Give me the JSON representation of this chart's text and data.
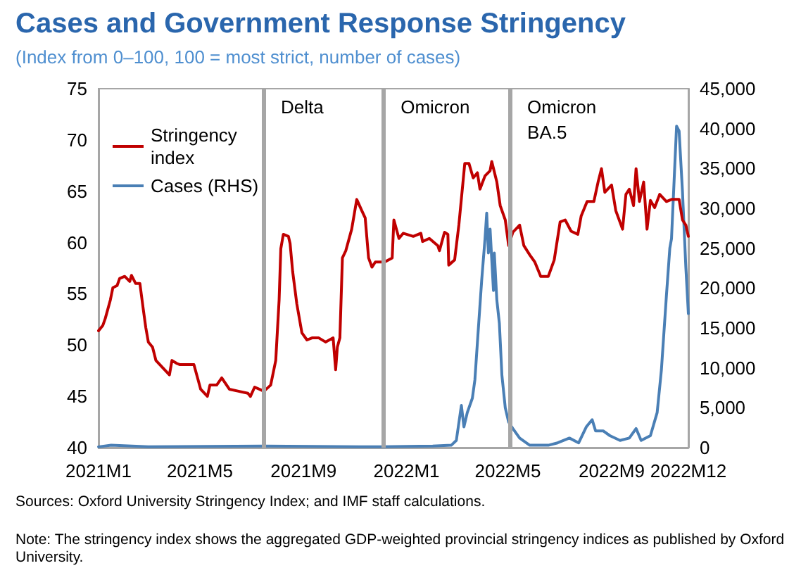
{
  "chart_data": {
    "type": "line",
    "title": "Cases and Government Response Stringency",
    "subtitle": "(Index from 0–100, 100 = most strict, number of cases)",
    "annotations": [
      "Sources: Oxford University Stringency Index; and IMF staff calculations.",
      "Note: The stringency index shows the aggregated GDP-weighted provincial stringency indices as published by Oxford University."
    ],
    "xlim": [
      "2021-01-01",
      "2022-12-01"
    ],
    "xticks": [
      {
        "value": "2021-01-01",
        "label": "2021M1"
      },
      {
        "value": "2021-05-01",
        "label": "2021M5"
      },
      {
        "value": "2021-09-01",
        "label": "2021M9"
      },
      {
        "value": "2022-01-01",
        "label": "2022M1"
      },
      {
        "value": "2022-05-01",
        "label": "2022M5"
      },
      {
        "value": "2022-09-01",
        "label": "2022M9"
      },
      {
        "value": "2022-12-01",
        "label": "2022M12"
      }
    ],
    "ylim": [
      40,
      75
    ],
    "yticks": [
      40,
      45,
      50,
      55,
      60,
      65,
      70,
      75
    ],
    "y2lim": [
      0,
      45000
    ],
    "y2ticks": [
      {
        "value": 0,
        "label": "0"
      },
      {
        "value": 5000,
        "label": "5,000"
      },
      {
        "value": 10000,
        "label": "10,000"
      },
      {
        "value": 15000,
        "label": "15,000"
      },
      {
        "value": 20000,
        "label": "20,000"
      },
      {
        "value": 25000,
        "label": "25,000"
      },
      {
        "value": 30000,
        "label": "30,000"
      },
      {
        "value": 35000,
        "label": "35,000"
      },
      {
        "value": 40000,
        "label": "40,000"
      },
      {
        "value": 45000,
        "label": "45,000"
      }
    ],
    "grid": false,
    "legend": "top left",
    "marker": "none",
    "line_style": "solid",
    "ref_lines": [
      {
        "axis": "x",
        "value": "2021-07-16",
        "label": "Delta",
        "color": "#a6a6a6"
      },
      {
        "axis": "x",
        "value": "2021-12-05",
        "label": "Omicron",
        "color": "#a6a6a6"
      },
      {
        "axis": "x",
        "value": "2022-05-04",
        "label": "Omicron BA.5",
        "color": "#a6a6a6"
      }
    ],
    "series": [
      {
        "name": "Stringency index",
        "color": "#c00000",
        "x": [
          "2021-01-01",
          "2021-01-06",
          "2021-01-09",
          "2021-01-15",
          "2021-01-18",
          "2021-01-23",
          "2021-01-26",
          "2021-02-01",
          "2021-02-07",
          "2021-02-09",
          "2021-02-14",
          "2021-02-19",
          "2021-02-23",
          "2021-02-26",
          "2021-03-01",
          "2021-03-06",
          "2021-03-10",
          "2021-03-18",
          "2021-03-26",
          "2021-03-29",
          "2021-04-04",
          "2021-04-07",
          "2021-04-24",
          "2021-04-29",
          "2021-05-02",
          "2021-05-10",
          "2021-05-13",
          "2021-05-21",
          "2021-05-27",
          "2021-06-05",
          "2021-06-16",
          "2021-06-27",
          "2021-06-30",
          "2021-07-05",
          "2021-07-16",
          "2021-07-24",
          "2021-07-30",
          "2021-08-03",
          "2021-08-05",
          "2021-08-08",
          "2021-08-14",
          "2021-08-16",
          "2021-08-19",
          "2021-08-24",
          "2021-08-30",
          "2021-09-05",
          "2021-09-11",
          "2021-09-19",
          "2021-09-27",
          "2021-10-06",
          "2021-10-09",
          "2021-10-11",
          "2021-10-14",
          "2021-10-17",
          "2021-10-21",
          "2021-10-28",
          "2021-11-03",
          "2021-11-09",
          "2021-11-13",
          "2021-11-17",
          "2021-11-21",
          "2021-11-25",
          "2021-11-30",
          "2021-12-06",
          "2021-12-15",
          "2021-12-17",
          "2021-12-23",
          "2021-12-28",
          "2022-01-09",
          "2022-01-18",
          "2022-01-20",
          "2022-01-28",
          "2022-02-07",
          "2022-02-09",
          "2022-02-15",
          "2022-02-19",
          "2022-02-20",
          "2022-02-27",
          "2022-03-04",
          "2022-03-11",
          "2022-03-16",
          "2022-03-21",
          "2022-03-26",
          "2022-03-29",
          "2022-04-04",
          "2022-04-10",
          "2022-04-12",
          "2022-04-18",
          "2022-04-22",
          "2022-04-28",
          "2022-05-02",
          "2022-05-07",
          "2022-05-15",
          "2022-05-20",
          "2022-05-27",
          "2022-06-02",
          "2022-06-09",
          "2022-06-18",
          "2022-06-25",
          "2022-07-02",
          "2022-07-08",
          "2022-07-15",
          "2022-07-23",
          "2022-07-27",
          "2022-08-03",
          "2022-08-11",
          "2022-08-16",
          "2022-08-20",
          "2022-08-24",
          "2022-09-01",
          "2022-09-06",
          "2022-09-14",
          "2022-09-18",
          "2022-09-22",
          "2022-09-27",
          "2022-09-30",
          "2022-10-04",
          "2022-10-09",
          "2022-10-13",
          "2022-10-17",
          "2022-10-22",
          "2022-10-28",
          "2022-11-05",
          "2022-11-11",
          "2022-11-20",
          "2022-11-24",
          "2022-11-28",
          "2022-12-01"
        ],
        "values": [
          51.4,
          51.9,
          52.6,
          54.4,
          55.6,
          55.8,
          56.5,
          56.7,
          56.2,
          56.8,
          56.0,
          56.0,
          53.5,
          51.7,
          50.3,
          49.8,
          48.5,
          47.8,
          47.1,
          48.5,
          48.2,
          48.1,
          48.1,
          46.6,
          45.7,
          45.0,
          46.1,
          46.1,
          46.8,
          45.7,
          45.5,
          45.3,
          45.0,
          45.9,
          45.5,
          46.1,
          48.5,
          54.4,
          59.4,
          60.8,
          60.6,
          59.9,
          57.2,
          54.0,
          51.2,
          50.5,
          50.7,
          50.7,
          50.3,
          50.7,
          47.6,
          49.8,
          50.7,
          58.5,
          59.2,
          61.3,
          64.2,
          63.1,
          62.4,
          58.5,
          57.6,
          58.1,
          58.1,
          58.1,
          58.5,
          62.2,
          60.4,
          60.9,
          60.6,
          60.9,
          60.1,
          60.4,
          59.7,
          59.2,
          61.0,
          60.8,
          57.8,
          58.3,
          61.7,
          67.7,
          67.7,
          66.3,
          66.8,
          65.2,
          66.5,
          67.0,
          67.9,
          65.9,
          63.6,
          62.2,
          59.7,
          61.0,
          61.7,
          59.7,
          58.8,
          58.1,
          56.7,
          56.7,
          58.3,
          62.0,
          62.2,
          61.1,
          60.8,
          62.6,
          64.0,
          64.0,
          65.9,
          67.2,
          64.9,
          65.6,
          63.1,
          61.3,
          64.7,
          65.2,
          63.6,
          67.2,
          64.0,
          65.9,
          61.3,
          64.1,
          63.4,
          64.7,
          64.0,
          64.2,
          64.2,
          62.2,
          61.7,
          60.6
        ]
      },
      {
        "name": "Cases (RHS)",
        "color": "#4a7fb5",
        "axis": "y2",
        "x": [
          "2021-01-01",
          "2021-01-16",
          "2021-03-01",
          "2021-07-16",
          "2021-12-01",
          "2022-02-01",
          "2022-02-23",
          "2022-03-01",
          "2022-03-07",
          "2022-03-10",
          "2022-03-14",
          "2022-03-20",
          "2022-03-23",
          "2022-03-26",
          "2022-03-31",
          "2022-04-04",
          "2022-04-06",
          "2022-04-08",
          "2022-04-10",
          "2022-04-14",
          "2022-04-15",
          "2022-04-18",
          "2022-04-21",
          "2022-04-24",
          "2022-04-28",
          "2022-05-02",
          "2022-05-07",
          "2022-05-15",
          "2022-05-27",
          "2022-06-18",
          "2022-06-29",
          "2022-07-13",
          "2022-07-24",
          "2022-08-02",
          "2022-08-09",
          "2022-08-13",
          "2022-08-22",
          "2022-08-30",
          "2022-09-11",
          "2022-09-22",
          "2022-09-30",
          "2022-10-06",
          "2022-10-17",
          "2022-10-25",
          "2022-10-30",
          "2022-11-05",
          "2022-11-09",
          "2022-11-11",
          "2022-11-17",
          "2022-11-20",
          "2022-11-24",
          "2022-11-28",
          "2022-12-01"
        ],
        "values": [
          100,
          300,
          100,
          200,
          100,
          200,
          300,
          900,
          5300,
          2600,
          4400,
          6200,
          8500,
          13200,
          20900,
          26200,
          29400,
          24400,
          27400,
          19700,
          24400,
          18500,
          15600,
          9100,
          5000,
          3200,
          2400,
          1200,
          300,
          300,
          600,
          1200,
          600,
          2600,
          3500,
          2100,
          2100,
          1500,
          900,
          1200,
          2400,
          900,
          1500,
          4400,
          9700,
          19100,
          25000,
          26200,
          40300,
          39700,
          32100,
          22600,
          16800
        ]
      }
    ]
  }
}
